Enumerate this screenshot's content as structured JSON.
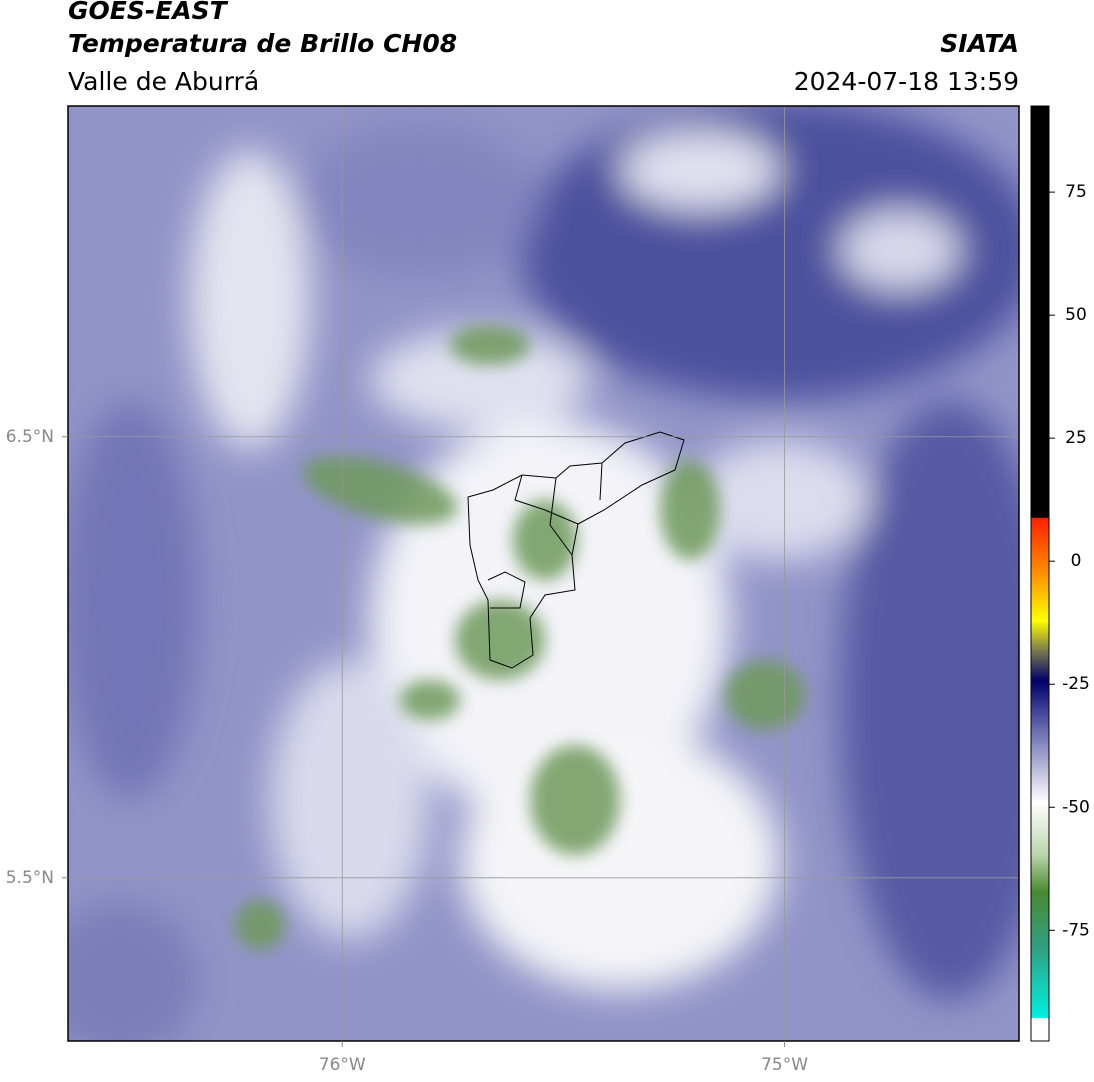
{
  "header": {
    "title": "GOES-EAST",
    "subtitle": "Temperatura de Brillo CH08",
    "source": "SIATA",
    "region": "Valle de Aburrá",
    "datetime": "2024-07-18 13:59"
  },
  "map": {
    "lonlim": [
      -76.62,
      -74.47
    ],
    "latlim": [
      5.13,
      7.25
    ],
    "lonticks": [
      {
        "value": -76,
        "label": "76°W"
      },
      {
        "value": -75,
        "label": "75°W"
      }
    ],
    "latticks": [
      {
        "value": 6.5,
        "label": "6.5°N"
      },
      {
        "value": 5.5,
        "label": "5.5°N"
      }
    ],
    "grid": true
  },
  "colorbar": {
    "lim": [
      -97.5,
      92.5
    ],
    "ticks": [
      75,
      50,
      25,
      0,
      -25,
      -50,
      -75
    ]
  }
}
